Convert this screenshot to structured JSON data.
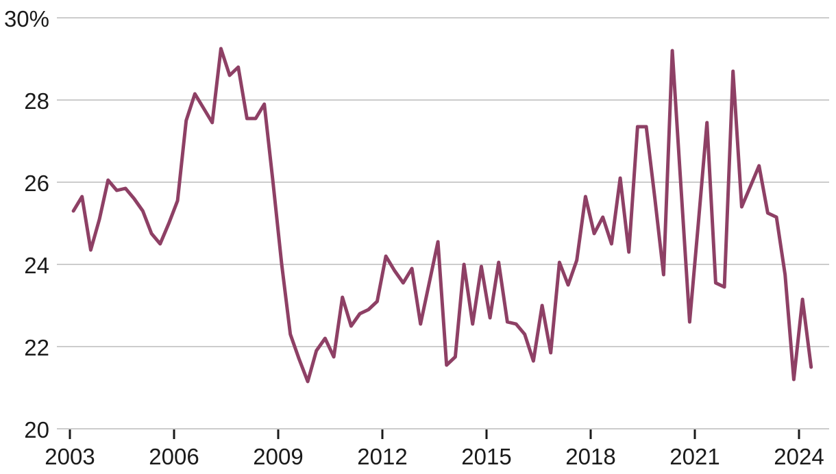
{
  "chart_data": {
    "type": "line",
    "title": "",
    "legend": "none",
    "grid": "horizontal",
    "frequency": "quarterly",
    "start_period": "2003Q1",
    "end_period": "2024Q2",
    "series": [
      {
        "name": "share-percent",
        "color": "#8e4065",
        "values": [
          25.3,
          25.65,
          24.35,
          25.1,
          26.05,
          25.8,
          25.85,
          25.6,
          25.3,
          24.75,
          24.5,
          25.0,
          25.55,
          27.5,
          28.15,
          27.8,
          27.45,
          29.25,
          28.6,
          28.8,
          27.55,
          27.55,
          27.9,
          26.0,
          24.0,
          22.3,
          21.7,
          21.15,
          21.9,
          22.2,
          21.75,
          23.2,
          22.5,
          22.8,
          22.9,
          23.1,
          24.2,
          23.85,
          23.55,
          23.9,
          22.55,
          23.55,
          24.55,
          21.55,
          21.75,
          24.0,
          22.55,
          23.95,
          22.7,
          24.05,
          22.6,
          22.55,
          22.3,
          21.65,
          23.0,
          21.85,
          24.05,
          23.5,
          24.1,
          25.65,
          24.75,
          25.15,
          24.5,
          26.1,
          24.3,
          27.35,
          27.35,
          25.6,
          23.75,
          29.2,
          25.9,
          22.6,
          25.0,
          27.45,
          23.55,
          23.45,
          28.7,
          25.4,
          25.9,
          26.4,
          25.25,
          25.15,
          23.75,
          21.2,
          23.15,
          21.5
        ]
      }
    ],
    "y_axis": {
      "min": 20,
      "max": 30,
      "ticks": [
        20,
        22,
        24,
        26,
        28,
        30
      ],
      "tick_labels": [
        "20",
        "22",
        "24",
        "26",
        "28",
        "30%"
      ]
    },
    "x_axis": {
      "tick_years": [
        2003,
        2006,
        2009,
        2012,
        2015,
        2018,
        2021,
        2024
      ],
      "tick_labels": [
        "2003",
        "2006",
        "2009",
        "2012",
        "2015",
        "2018",
        "2021",
        "2024"
      ]
    },
    "colors": {
      "line": "#8e4065",
      "gridline": "#cccccc",
      "text": "#1a1a1a",
      "tick_mark": "#1a1a1a",
      "background": "#ffffff"
    }
  }
}
